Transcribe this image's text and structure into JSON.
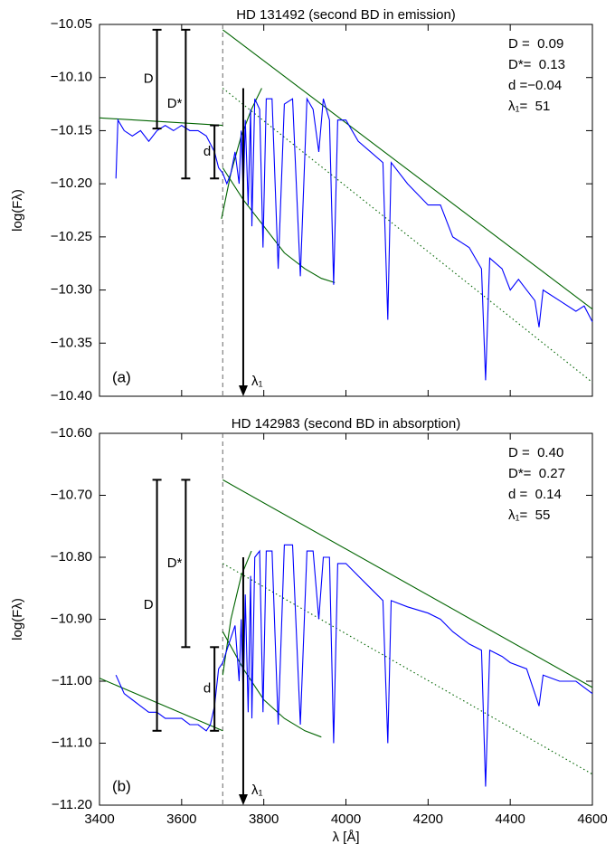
{
  "chart_data": [
    {
      "type": "line",
      "title": "HD 131492 (second BD in emission)",
      "panel_label": "(a)",
      "ylabel": "log(Fλ)",
      "xlim": [
        3400,
        4600
      ],
      "ylim": [
        -10.4,
        -10.05
      ],
      "xticks": [
        3400,
        3600,
        3800,
        4000,
        4200,
        4400,
        4600
      ],
      "yticks": [
        {
          "value": -10.05,
          "label": "−10.05"
        },
        {
          "value": -10.1,
          "label": "−10.10"
        },
        {
          "value": -10.15,
          "label": "−10.15"
        },
        {
          "value": -10.2,
          "label": "−10.20"
        },
        {
          "value": -10.25,
          "label": "−10.25"
        },
        {
          "value": -10.3,
          "label": "−10.30"
        },
        {
          "value": -10.35,
          "label": "−10.35"
        },
        {
          "value": -10.4,
          "label": "−10.40"
        }
      ],
      "x": [
        3440,
        3445,
        3460,
        3480,
        3500,
        3520,
        3540,
        3560,
        3580,
        3600,
        3620,
        3640,
        3660,
        3680,
        3690,
        3700,
        3710,
        3720,
        3730,
        3740,
        3745,
        3750,
        3755,
        3762,
        3768,
        3771,
        3778,
        3790,
        3798,
        3806,
        3820,
        3835,
        3850,
        3870,
        3889,
        3905,
        3920,
        3934,
        3945,
        3960,
        3970,
        3980,
        4000,
        4030,
        4060,
        4090,
        4102,
        4110,
        4150,
        4200,
        4230,
        4260,
        4300,
        4330,
        4340,
        4350,
        4380,
        4400,
        4420,
        4440,
        4460,
        4470,
        4480,
        4520,
        4560,
        4580,
        4600
      ],
      "series": [
        {
          "color": "#0000ff",
          "values": [
            -10.195,
            -10.14,
            -10.15,
            -10.155,
            -10.15,
            -10.16,
            -10.15,
            -10.145,
            -10.15,
            -10.145,
            -10.15,
            -10.15,
            -10.155,
            -10.17,
            -10.185,
            -10.19,
            -10.2,
            -10.19,
            -10.17,
            -10.2,
            -10.15,
            -10.21,
            -10.14,
            -10.22,
            -10.13,
            -10.24,
            -10.12,
            -10.13,
            -10.26,
            -10.12,
            -10.12,
            -10.28,
            -10.125,
            -10.12,
            -10.287,
            -10.12,
            -10.13,
            -10.17,
            -10.12,
            -10.14,
            -10.295,
            -10.14,
            -10.14,
            -10.16,
            -10.17,
            -10.18,
            -10.328,
            -10.18,
            -10.2,
            -10.22,
            -10.22,
            -10.25,
            -10.26,
            -10.28,
            -10.385,
            -10.27,
            -10.28,
            -10.3,
            -10.29,
            -10.3,
            -10.31,
            -10.335,
            -10.3,
            -10.31,
            -10.32,
            -10.315,
            -10.33
          ]
        }
      ],
      "fits": [
        {
          "color": "#006400",
          "style": "solid",
          "x": [
            3700,
            4600
          ],
          "values": [
            -10.055,
            -10.318
          ]
        },
        {
          "color": "#006400",
          "style": "dotted",
          "x": [
            3700,
            4600
          ],
          "values": [
            -10.11,
            -10.387
          ]
        },
        {
          "color": "#006400",
          "style": "solid",
          "x": [
            3400,
            3700
          ],
          "values": [
            -10.138,
            -10.145
          ]
        },
        {
          "color": "#006400",
          "style": "solid",
          "x": [
            3697,
            3720,
            3745,
            3770,
            3795
          ],
          "values": [
            -10.233,
            -10.19,
            -10.155,
            -10.13,
            -10.11
          ]
        },
        {
          "color": "#006400",
          "style": "solid",
          "x": [
            3700,
            3750,
            3800,
            3850,
            3900,
            3940,
            3973
          ],
          "values": [
            -10.185,
            -10.215,
            -10.24,
            -10.265,
            -10.28,
            -10.289,
            -10.293
          ]
        }
      ],
      "jump_x": 3700,
      "bars": [
        {
          "label": "D",
          "x": 3540,
          "values": [
            -10.055,
            -10.148
          ]
        },
        {
          "label": "D*",
          "x": 3610,
          "values": [
            -10.055,
            -10.195
          ]
        },
        {
          "label": "d",
          "x": 3680,
          "values": [
            -10.145,
            -10.195
          ]
        }
      ],
      "arrow": {
        "label": "λ₁",
        "x": 3750,
        "values": [
          -10.11,
          -10.4
        ]
      },
      "stats": [
        "D =  0.09",
        "D*=  0.13",
        "d =−0.04",
        "λ₁=  51"
      ]
    },
    {
      "type": "line",
      "title": "HD 142983 (second BD in absorption)",
      "panel_label": "(b)",
      "ylabel": "log(Fλ)",
      "xlabel": "λ [Å]",
      "xlim": [
        3400,
        4600
      ],
      "ylim": [
        -11.2,
        -10.6
      ],
      "xticks": [
        3400,
        3600,
        3800,
        4000,
        4200,
        4400,
        4600
      ],
      "yticks": [
        {
          "value": -10.6,
          "label": "−10.60"
        },
        {
          "value": -10.7,
          "label": "−10.70"
        },
        {
          "value": -10.8,
          "label": "−10.80"
        },
        {
          "value": -10.9,
          "label": "−10.90"
        },
        {
          "value": -11.0,
          "label": "−11.00"
        },
        {
          "value": -11.1,
          "label": "−11.10"
        },
        {
          "value": -11.2,
          "label": "−11.20"
        }
      ],
      "x": [
        3440,
        3460,
        3480,
        3500,
        3520,
        3540,
        3560,
        3580,
        3600,
        3620,
        3640,
        3660,
        3670,
        3680,
        3690,
        3700,
        3710,
        3720,
        3730,
        3740,
        3745,
        3750,
        3755,
        3762,
        3768,
        3771,
        3778,
        3790,
        3798,
        3806,
        3820,
        3835,
        3850,
        3870,
        3889,
        3905,
        3920,
        3934,
        3945,
        3960,
        3970,
        3980,
        4000,
        4030,
        4060,
        4090,
        4102,
        4110,
        4150,
        4200,
        4230,
        4260,
        4300,
        4330,
        4340,
        4350,
        4380,
        4400,
        4440,
        4470,
        4480,
        4520,
        4560,
        4600
      ],
      "series": [
        {
          "color": "#0000ff",
          "values": [
            -10.99,
            -11.02,
            -11.03,
            -11.04,
            -11.05,
            -11.05,
            -11.06,
            -11.06,
            -11.06,
            -11.07,
            -11.07,
            -11.08,
            -11.07,
            -11.04,
            -10.98,
            -10.97,
            -10.95,
            -10.93,
            -10.91,
            -11.0,
            -10.9,
            -11.03,
            -10.86,
            -11.05,
            -10.83,
            -11.06,
            -10.8,
            -10.79,
            -11.05,
            -10.79,
            -10.79,
            -11.07,
            -10.78,
            -10.78,
            -11.07,
            -10.79,
            -10.79,
            -10.9,
            -10.8,
            -10.8,
            -11.1,
            -10.81,
            -10.81,
            -10.83,
            -10.85,
            -10.87,
            -11.1,
            -10.87,
            -10.88,
            -10.89,
            -10.9,
            -10.92,
            -10.94,
            -10.95,
            -11.17,
            -10.95,
            -10.96,
            -10.97,
            -10.98,
            -11.04,
            -10.99,
            -11.0,
            -11.0,
            -11.02
          ]
        }
      ],
      "fits": [
        {
          "color": "#006400",
          "style": "solid",
          "x": [
            3700,
            4600
          ],
          "values": [
            -10.675,
            -11.01
          ]
        },
        {
          "color": "#006400",
          "style": "dotted",
          "x": [
            3700,
            4600
          ],
          "values": [
            -10.81,
            -11.15
          ]
        },
        {
          "color": "#006400",
          "style": "solid",
          "x": [
            3400,
            3700
          ],
          "values": [
            -10.995,
            -11.08
          ]
        },
        {
          "color": "#006400",
          "style": "solid",
          "x": [
            3700,
            3720,
            3745,
            3770
          ],
          "values": [
            -10.99,
            -10.9,
            -10.83,
            -10.79
          ]
        },
        {
          "color": "#006400",
          "style": "solid",
          "x": [
            3700,
            3750,
            3800,
            3850,
            3900,
            3940
          ],
          "values": [
            -10.92,
            -10.98,
            -11.03,
            -11.06,
            -11.08,
            -11.09
          ]
        }
      ],
      "jump_x": 3700,
      "bars": [
        {
          "label": "D",
          "x": 3540,
          "values": [
            -10.675,
            -11.08
          ]
        },
        {
          "label": "D*",
          "x": 3610,
          "values": [
            -10.675,
            -10.945
          ]
        },
        {
          "label": "d",
          "x": 3680,
          "values": [
            -10.945,
            -11.08
          ]
        }
      ],
      "arrow": {
        "label": "λ₁",
        "x": 3750,
        "values": [
          -10.8,
          -11.2
        ]
      },
      "stats": [
        "D =  0.40",
        "D*=  0.27",
        "d =  0.14",
        "λ₁=  55"
      ]
    }
  ]
}
